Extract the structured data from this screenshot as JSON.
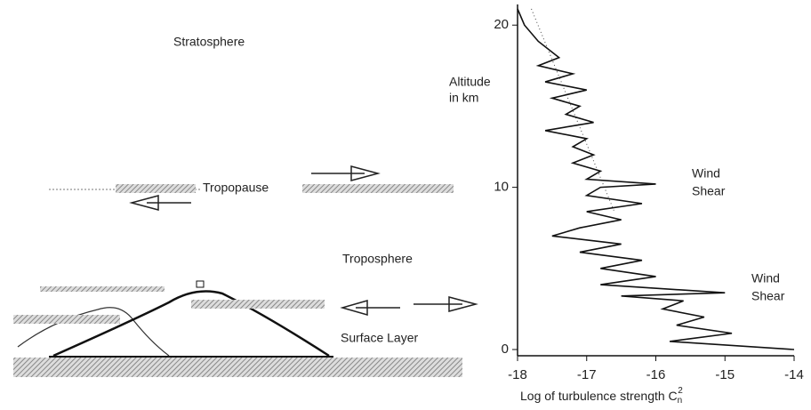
{
  "labels": {
    "stratosphere": "Stratosphere",
    "tropopause": "Tropopause",
    "troposphere": "Troposphere",
    "surface_layer": "Surface Layer"
  },
  "chart_data": {
    "type": "line",
    "ylabel": [
      "Altitude",
      "in km"
    ],
    "xlabel": "Log of turbulence strength C",
    "xlabel_sub": "n",
    "xlabel_sup": "2",
    "annotations": [
      [
        "Wind",
        "Shear"
      ],
      [
        "Wind",
        "Shear"
      ]
    ],
    "xlim": [
      -18,
      -14
    ],
    "ylim": [
      0,
      21
    ],
    "xticks": [
      -18,
      -17,
      -16,
      -15,
      -14
    ],
    "yticks": [
      0,
      10,
      20
    ],
    "color": "#111",
    "altitude": [
      21,
      20,
      19,
      18,
      17.5,
      17,
      16.5,
      16,
      15.5,
      15,
      14.5,
      14,
      13.5,
      13,
      12.5,
      12,
      11.5,
      11,
      10.5,
      10.2,
      10,
      9.5,
      9,
      8.5,
      8,
      7.5,
      7,
      6.5,
      6,
      5.5,
      5,
      4.5,
      4,
      3.5,
      3.3,
      3,
      2.5,
      2,
      1.5,
      1,
      0.5,
      0
    ],
    "values": [
      -18,
      -17.9,
      -17.7,
      -17.4,
      -17.7,
      -17.2,
      -17.6,
      -17,
      -17.5,
      -17.1,
      -17.3,
      -16.9,
      -17.6,
      -17,
      -17.2,
      -16.9,
      -17.2,
      -16.8,
      -17,
      -16,
      -16.8,
      -17,
      -16.2,
      -17,
      -16.5,
      -17.1,
      -17.5,
      -16.5,
      -17.1,
      -16.2,
      -16.8,
      -16,
      -16.8,
      -15,
      -16.5,
      -15.6,
      -15.9,
      -15.3,
      -15.7,
      -14.9,
      -15.8,
      -14
    ],
    "trend": {
      "altitude": [
        21,
        8.5
      ],
      "values": [
        -17.8,
        -16.6
      ]
    }
  }
}
